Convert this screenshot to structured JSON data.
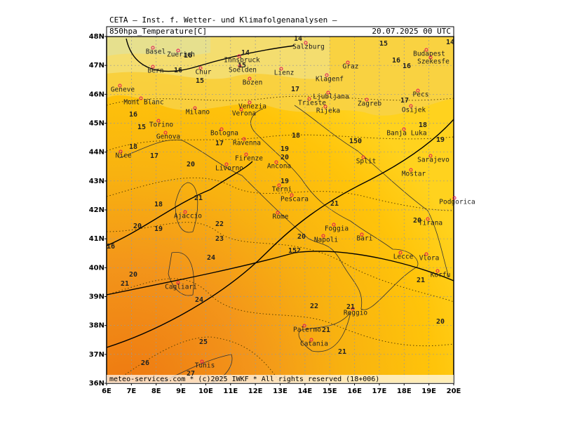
{
  "header": {
    "title": "CETA — Inst. f. Wetter- und Klimafolgenanalysen —",
    "field": "850hpa_Temperature[C]",
    "datetime": "20.07.2025 00 UTC"
  },
  "footer": "meteo-services.com * (c)2025 IWKF * All rights reserved (18+006)",
  "axes": {
    "lat": [
      "48N",
      "47N",
      "46N",
      "45N",
      "44N",
      "43N",
      "42N",
      "41N",
      "40N",
      "39N",
      "38N",
      "37N",
      "36N"
    ],
    "lon": [
      "6E",
      "7E",
      "8E",
      "9E",
      "10E",
      "11E",
      "12E",
      "13E",
      "14E",
      "15E",
      "16E",
      "17E",
      "18E",
      "19E",
      "20E"
    ]
  },
  "cities": [
    "Basel",
    "Zuerich",
    "Bern",
    "Chur",
    "Geneve",
    "Mont Blanc",
    "Milano",
    "Verona",
    "Venezia",
    "Bozen",
    "Innsbruck",
    "Soelden",
    "Salzburg",
    "Lienz",
    "Klagenf",
    "Ljubljana",
    "Graz",
    "Budapest",
    "Szekesfe",
    "Zagreb",
    "Trieste",
    "Rijeka",
    "Pecs",
    "Osijek",
    "Banja Luka",
    "Split",
    "Sarajevo",
    "Mostar",
    "Podgorica",
    "Tirana",
    "Vlora",
    "Korfu",
    "Lecce",
    "Bari",
    "Foggia",
    "Napoli",
    "Rome",
    "Pescara",
    "Terni",
    "Ancona",
    "Firenze",
    "Bologna",
    "Ravenna",
    "Genova",
    "Livorno",
    "Torino",
    "Nice",
    "Ajaccio",
    "Cagliari",
    "Palermo",
    "Catania",
    "Reggio",
    "Tunis"
  ],
  "contours": [
    14,
    15,
    14,
    16,
    14,
    15,
    16,
    15,
    16,
    16,
    16,
    15,
    17,
    17,
    18,
    18,
    17,
    18,
    17,
    19,
    20,
    19,
    20,
    19,
    18,
    21,
    20,
    19,
    22,
    23,
    21,
    20,
    20,
    24,
    20,
    21,
    21,
    24,
    22,
    21,
    20,
    21,
    25,
    21,
    26,
    27,
    16,
    152,
    150
  ]
}
